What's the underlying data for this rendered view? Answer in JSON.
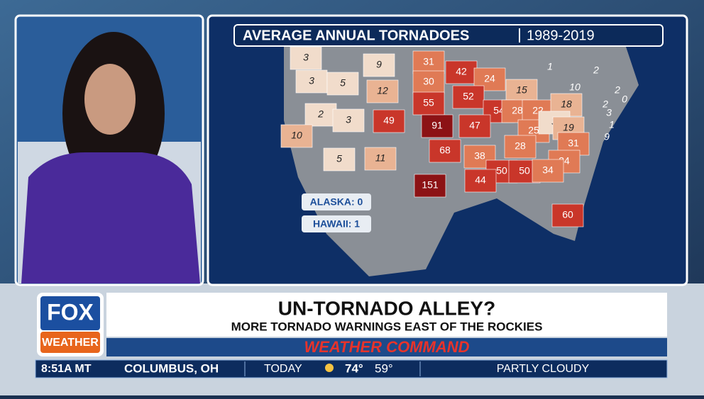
{
  "map": {
    "title": "AVERAGE ANNUAL TORNADOES",
    "period": "1989-2019",
    "labels": [
      3,
      9,
      31,
      42,
      24,
      1,
      2,
      3,
      5,
      12,
      30,
      52,
      15,
      10,
      2,
      0,
      55,
      54,
      28,
      22,
      18,
      2,
      3,
      1,
      9,
      2,
      3,
      49,
      91,
      47,
      25,
      3,
      19,
      10,
      28,
      31,
      68,
      38,
      24,
      5,
      11,
      50,
      50,
      34,
      44,
      151,
      60
    ],
    "alaska": "ALASKA: 0",
    "hawaii": "HAWAII: 1"
  },
  "lower_third": {
    "logo_top": "FOX",
    "logo_bottom": "WEATHER",
    "headline": "UN-TORNADO ALLEY?",
    "subheadline": "MORE TORNADO WARNINGS EAST OF THE ROCKIES",
    "brand": "WEATHER COMMAND"
  },
  "ticker": {
    "time": "8:51A MT",
    "location": "COLUMBUS, OH",
    "day": "TODAY",
    "high": "74°",
    "low": "59°",
    "condition": "PARTLY CLOUDY"
  }
}
